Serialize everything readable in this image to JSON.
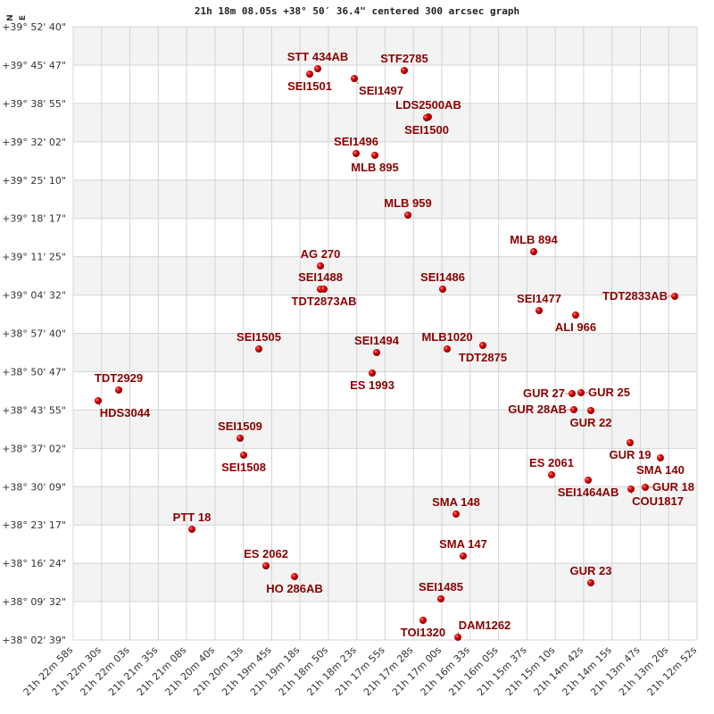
{
  "chart_data": {
    "type": "scatter",
    "title": "21h 18m 08.05s +38° 50′ 36.4\" centered 300 arcsec graph",
    "xlabel": "",
    "ylabel": "",
    "x_unit": "right ascension (hours)",
    "y_unit": "declination (degrees)",
    "xlim": [
      21.382778,
      21.214444
    ],
    "ylim": [
      38.044167,
      39.877778
    ],
    "x_reversed": true,
    "grid": true,
    "alternating_row_bands": true,
    "x_tick_labels": [
      "21h 22m 58s",
      "21h 22m 30s",
      "21h 22m 03s",
      "21h 21m 35s",
      "21h 21m 08s",
      "21h 20m 40s",
      "21h 20m 13s",
      "21h 19m 45s",
      "21h 19m 18s",
      "21h 18m 50s",
      "21h 18m 23s",
      "21h 17m 55s",
      "21h 17m 28s",
      "21h 17m 00s",
      "21h 16m 33s",
      "21h 16m 05s",
      "21h 15m 37s",
      "21h 15m 10s",
      "21h 14m 42s",
      "21h 14m 15s",
      "21h 13m 47s",
      "21h 13m 20s",
      "21h 12m 52s"
    ],
    "y_tick_labels": [
      "+39° 52' 40\"",
      "+39° 45' 47\"",
      "+39° 38' 55\"",
      "+39° 32' 02\"",
      "+39° 25' 10\"",
      "+39° 18' 17\"",
      "+39° 11' 25\"",
      "+39° 04' 32\"",
      "+38° 57' 40\"",
      "+38° 50' 47\"",
      "+38° 43' 55\"",
      "+38° 37' 02\"",
      "+38° 30' 09\"",
      "+38° 23' 17\"",
      "+38° 16' 24\"",
      "+38° 09' 32\"",
      "+38° 02' 39\""
    ],
    "compass": {
      "north": "N",
      "east": "E"
    },
    "point_color": "#dd0000",
    "label_color": "#8b0000",
    "points": [
      {
        "name": "STT 434AB",
        "ra": 21.31679,
        "dec": 39.7523
      },
      {
        "name": "SEI1501",
        "ra": 21.31896,
        "dec": 39.7363
      },
      {
        "name": "SEI1497",
        "ra": 21.30692,
        "dec": 39.723
      },
      {
        "name": "STF2785",
        "ra": 21.29343,
        "dec": 39.747
      },
      {
        "name": "LDS2500AB",
        "ra": 21.28693,
        "dec": 39.6082
      },
      {
        "name": "SEI1500",
        "ra": 21.28741,
        "dec": 39.6055
      },
      {
        "name": "SEI1496",
        "ra": 21.30644,
        "dec": 39.4988
      },
      {
        "name": "MLB 895",
        "ra": 21.30138,
        "dec": 39.4934
      },
      {
        "name": "MLB 959",
        "ra": 21.29247,
        "dec": 39.3146
      },
      {
        "name": "MLB 894",
        "ra": 21.25852,
        "dec": 39.2052
      },
      {
        "name": "AG  270",
        "ra": 21.31607,
        "dec": 39.1625
      },
      {
        "name": "SEI1488",
        "ra": 21.31607,
        "dec": 39.0931
      },
      {
        "name": "TDT2873AB",
        "ra": 21.31511,
        "dec": 39.0931
      },
      {
        "name": "SEI1486",
        "ra": 21.28308,
        "dec": 39.0931
      },
      {
        "name": "TDT2833AB",
        "ra": 21.22047,
        "dec": 39.0717
      },
      {
        "name": "SEI1477",
        "ra": 21.25707,
        "dec": 39.029
      },
      {
        "name": "ALI 966",
        "ra": 21.2472,
        "dec": 39.0157
      },
      {
        "name": "SEI1505",
        "ra": 21.33269,
        "dec": 38.9143
      },
      {
        "name": "SEI1494",
        "ra": 21.3009,
        "dec": 38.9036
      },
      {
        "name": "MLB1020",
        "ra": 21.28187,
        "dec": 38.9143
      },
      {
        "name": "TDT2875",
        "ra": 21.27224,
        "dec": 38.9249
      },
      {
        "name": "ES 1993",
        "ra": 21.3021,
        "dec": 38.8422
      },
      {
        "name": "TDT2929",
        "ra": 21.3705,
        "dec": 38.7915
      },
      {
        "name": "HDS3044",
        "ra": 21.37604,
        "dec": 38.7595
      },
      {
        "name": "GUR  27",
        "ra": 21.24816,
        "dec": 38.7808
      },
      {
        "name": "GUR  25",
        "ra": 21.24575,
        "dec": 38.7835
      },
      {
        "name": "GUR 28AB",
        "ra": 21.24768,
        "dec": 38.7328
      },
      {
        "name": "GUR  22",
        "ra": 21.2431,
        "dec": 38.7301
      },
      {
        "name": "SEI1509",
        "ra": 21.33775,
        "dec": 38.6474
      },
      {
        "name": "SEI1508",
        "ra": 21.33678,
        "dec": 38.5967
      },
      {
        "name": "GUR  19",
        "ra": 21.23251,
        "dec": 38.634
      },
      {
        "name": "SMA 140",
        "ra": 21.22432,
        "dec": 38.5886
      },
      {
        "name": "ES 2061",
        "ra": 21.2537,
        "dec": 38.5379
      },
      {
        "name": "SEI1464AB",
        "ra": 21.24382,
        "dec": 38.5219
      },
      {
        "name": "COU1817",
        "ra": 21.23226,
        "dec": 38.4952
      },
      {
        "name": "GUR  18",
        "ra": 21.22841,
        "dec": 38.5006
      },
      {
        "name": "SMA 148",
        "ra": 21.27947,
        "dec": 38.4205
      },
      {
        "name": "PTT  18",
        "ra": 21.35075,
        "dec": 38.3751
      },
      {
        "name": "SMA 147",
        "ra": 21.27754,
        "dec": 38.2951
      },
      {
        "name": "ES 2062",
        "ra": 21.33076,
        "dec": 38.2657
      },
      {
        "name": "HO  286AB",
        "ra": 21.32305,
        "dec": 38.2337
      },
      {
        "name": "GUR  23",
        "ra": 21.2431,
        "dec": 38.215
      },
      {
        "name": "SEI1485",
        "ra": 21.28356,
        "dec": 38.1669
      },
      {
        "name": "TOI1320",
        "ra": 21.28838,
        "dec": 38.1029
      },
      {
        "name": "DAM1262",
        "ra": 21.27898,
        "dec": 38.0522
      }
    ]
  }
}
